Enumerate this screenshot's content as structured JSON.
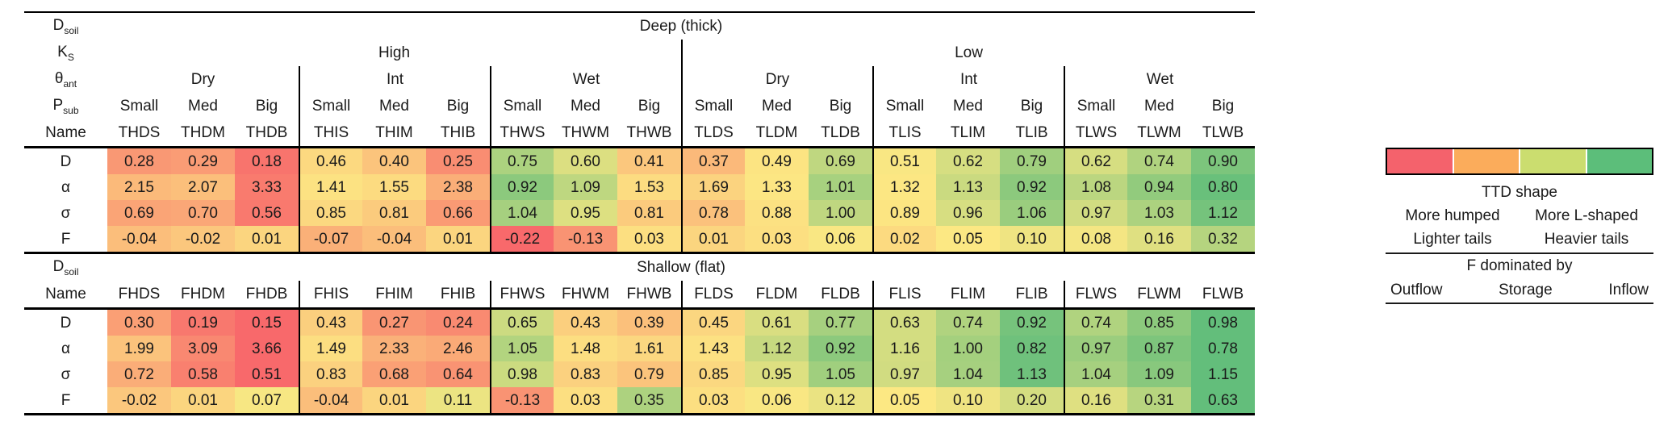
{
  "chart_data": {
    "type": "heatmap",
    "title": "",
    "param_labels": {
      "d_soil": {
        "base": "D",
        "sub": "soil"
      },
      "k_s": {
        "base": "K",
        "sub": "S"
      },
      "theta_ant": {
        "base": "θ",
        "sub": "ant"
      },
      "p_sub": {
        "base": "P",
        "sub": "sub"
      },
      "name": "Name"
    },
    "row_labels": [
      "D",
      "α",
      "σ",
      "F"
    ],
    "row_keys": [
      "D",
      "alpha",
      "sigma",
      "F"
    ],
    "sections": [
      {
        "d_soil": "Deep (thick)",
        "full_header": true,
        "ks": [
          "High",
          "Low"
        ],
        "theta": [
          "Dry",
          "Int",
          "Wet",
          "Dry",
          "Int",
          "Wet"
        ],
        "p": [
          "Small",
          "Med",
          "Big",
          "Small",
          "Med",
          "Big",
          "Small",
          "Med",
          "Big",
          "Small",
          "Med",
          "Big",
          "Small",
          "Med",
          "Big",
          "Small",
          "Med",
          "Big"
        ],
        "names": [
          "THDS",
          "THDM",
          "THDB",
          "THIS",
          "THIM",
          "THIB",
          "THWS",
          "THWM",
          "THWB",
          "TLDS",
          "TLDM",
          "TLDB",
          "TLIS",
          "TLIM",
          "TLIB",
          "TLWS",
          "TLWM",
          "TLWB"
        ],
        "values": {
          "D": [
            0.28,
            0.29,
            0.18,
            0.46,
            0.4,
            0.25,
            0.75,
            0.6,
            0.41,
            0.37,
            0.49,
            0.69,
            0.51,
            0.62,
            0.79,
            0.62,
            0.74,
            0.9
          ],
          "alpha": [
            2.15,
            2.07,
            3.33,
            1.41,
            1.55,
            2.38,
            0.92,
            1.09,
            1.53,
            1.69,
            1.33,
            1.01,
            1.32,
            1.13,
            0.92,
            1.08,
            0.94,
            0.8
          ],
          "sigma": [
            0.69,
            0.7,
            0.56,
            0.85,
            0.81,
            0.66,
            1.04,
            0.95,
            0.81,
            0.78,
            0.88,
            1.0,
            0.89,
            0.96,
            1.06,
            0.97,
            1.03,
            1.12
          ],
          "F": [
            -0.04,
            -0.02,
            0.01,
            -0.07,
            -0.04,
            0.01,
            -0.22,
            -0.13,
            0.03,
            0.01,
            0.03,
            0.06,
            0.02,
            0.05,
            0.1,
            0.08,
            0.16,
            0.32
          ]
        }
      },
      {
        "d_soil": "Shallow (flat)",
        "full_header": false,
        "names": [
          "FHDS",
          "FHDM",
          "FHDB",
          "FHIS",
          "FHIM",
          "FHIB",
          "FHWS",
          "FHWM",
          "FHWB",
          "FLDS",
          "FLDM",
          "FLDB",
          "FLIS",
          "FLIM",
          "FLIB",
          "FLWS",
          "FLWM",
          "FLWB"
        ],
        "values": {
          "D": [
            0.3,
            0.19,
            0.15,
            0.43,
            0.27,
            0.24,
            0.65,
            0.43,
            0.39,
            0.45,
            0.61,
            0.77,
            0.63,
            0.74,
            0.92,
            0.74,
            0.85,
            0.98
          ],
          "alpha": [
            1.99,
            3.09,
            3.66,
            1.49,
            2.33,
            2.46,
            1.05,
            1.48,
            1.61,
            1.43,
            1.12,
            0.92,
            1.16,
            1.0,
            0.82,
            0.97,
            0.87,
            0.78
          ],
          "sigma": [
            0.72,
            0.58,
            0.51,
            0.83,
            0.68,
            0.64,
            0.98,
            0.83,
            0.79,
            0.85,
            0.95,
            1.05,
            0.97,
            1.04,
            1.13,
            1.04,
            1.09,
            1.15
          ],
          "F": [
            -0.02,
            0.01,
            0.07,
            -0.04,
            0.01,
            0.11,
            -0.13,
            0.03,
            0.35,
            0.03,
            0.06,
            0.12,
            0.05,
            0.1,
            0.2,
            0.16,
            0.31,
            0.63
          ]
        }
      }
    ],
    "color_scale": {
      "red": "#F8696B",
      "yellow": "#FCE883",
      "green": "#63BE7B",
      "per_row": {
        "D": {
          "min": 0.15,
          "mid": 0.5,
          "max": 0.98,
          "invert": false
        },
        "alpha": {
          "min": 0.78,
          "mid": 1.3,
          "max": 3.66,
          "invert": true
        },
        "sigma": {
          "min": 0.51,
          "mid": 0.9,
          "max": 1.15,
          "invert": false
        },
        "F": {
          "min": -0.22,
          "mid": 0.05,
          "max": 0.63,
          "invert": false
        }
      }
    }
  },
  "legend": {
    "bar_colors": [
      "#F4626C",
      "#FBAC5B",
      "#CBDD6F",
      "#5CBE7A"
    ],
    "title": "TTD shape",
    "shape_left": "More humped",
    "shape_right": "More L-shaped",
    "tails_left": "Lighter tails",
    "tails_right": "Heavier tails",
    "f_title": "F dominated by",
    "f_items": [
      "Outflow",
      "Storage",
      "Inflow"
    ]
  }
}
